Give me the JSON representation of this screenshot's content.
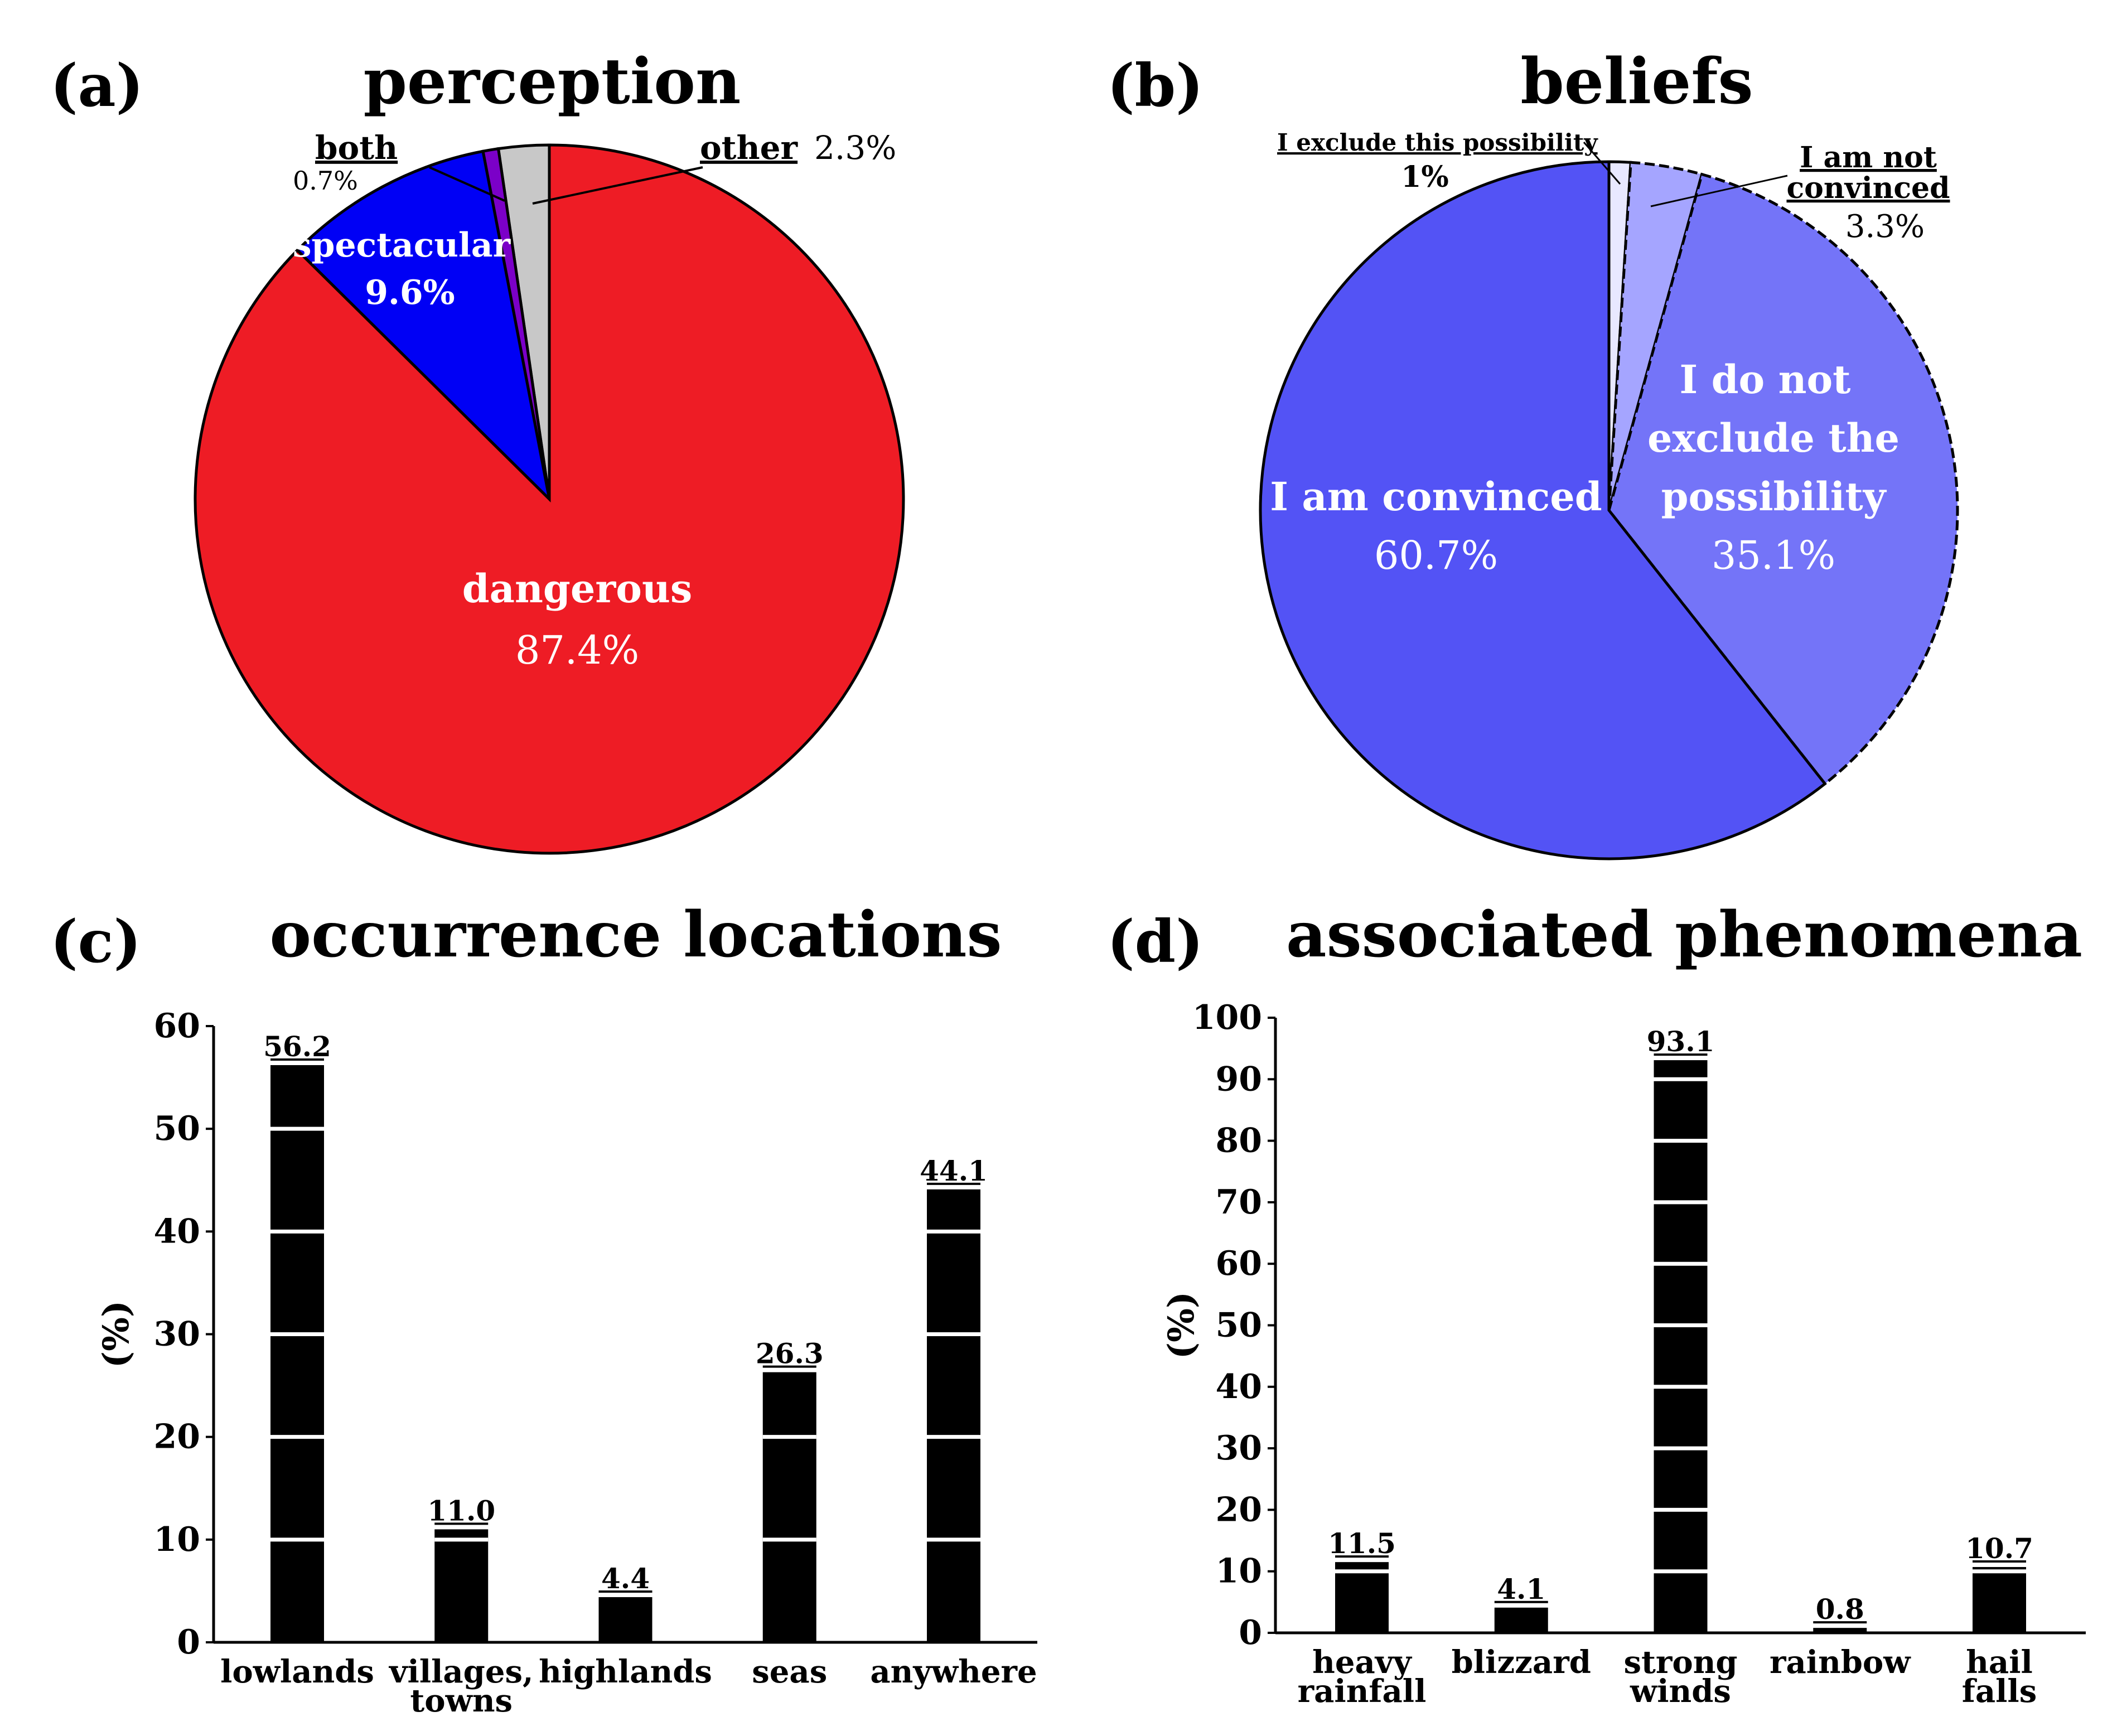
{
  "chart_data": [
    {
      "id": "a",
      "panel_label": "(a)",
      "type": "pie",
      "title": "perception",
      "slices": [
        {
          "label": "dangerous",
          "value": 87.4,
          "value_label": "87.4%",
          "color": "#ee1c25"
        },
        {
          "label": "spectacular",
          "value": 9.6,
          "value_label": "9.6%",
          "color": "#0000f5"
        },
        {
          "label": "both",
          "value": 0.7,
          "value_label": "0.7%",
          "color": "#7b00c8"
        },
        {
          "label": "other",
          "value": 2.3,
          "value_label": "2.3%",
          "color": "#c8c8c8"
        }
      ]
    },
    {
      "id": "b",
      "panel_label": "(b)",
      "type": "pie",
      "title": "beliefs",
      "slices": [
        {
          "label": "I exclude this possibility",
          "value": 1,
          "value_label": "1%",
          "color": "#e8e8ff"
        },
        {
          "label": "I am not convinced",
          "label_lines": [
            "I am not",
            "convinced"
          ],
          "value": 3.3,
          "value_label": "3.3%",
          "color": "#a5a5ff"
        },
        {
          "label": "I do not exclude the possibility",
          "label_lines": [
            "I do not",
            "exclude the",
            "possibility"
          ],
          "value": 35.1,
          "value_label": "35.1%",
          "color": "#7474f8"
        },
        {
          "label": "I am convinced",
          "value": 60.7,
          "value_label": "60.7%",
          "color": "#5353f5"
        }
      ]
    },
    {
      "id": "c",
      "panel_label": "(c)",
      "type": "bar",
      "title": "occurrence locations",
      "ylabel": "(%)",
      "ylim": [
        0,
        60
      ],
      "yticks": [
        0,
        10,
        20,
        30,
        40,
        50,
        60
      ],
      "categories": [
        [
          "lowlands"
        ],
        [
          "villages,",
          "towns"
        ],
        [
          "highlands"
        ],
        [
          "seas"
        ],
        [
          "anywhere"
        ]
      ],
      "values": [
        56.2,
        11.0,
        4.4,
        26.3,
        44.1
      ],
      "value_labels": [
        "56.2",
        "11.0",
        "4.4",
        "26.3",
        "44.1"
      ],
      "bar_color": "#000000"
    },
    {
      "id": "d",
      "panel_label": "(d)",
      "type": "bar",
      "title": "associated phenomena",
      "ylabel": "(%)",
      "ylim": [
        0,
        100
      ],
      "yticks": [
        0,
        10,
        20,
        30,
        40,
        50,
        60,
        70,
        80,
        90,
        100
      ],
      "categories": [
        [
          "heavy",
          "rainfall"
        ],
        [
          "blizzard"
        ],
        [
          "strong",
          "winds"
        ],
        [
          "rainbow"
        ],
        [
          "hail",
          "falls"
        ]
      ],
      "values": [
        11.5,
        4.1,
        93.1,
        0.8,
        10.7
      ],
      "value_labels": [
        "11.5",
        "4.1",
        "93.1",
        "0.8",
        "10.7"
      ],
      "bar_color": "#000000"
    }
  ]
}
